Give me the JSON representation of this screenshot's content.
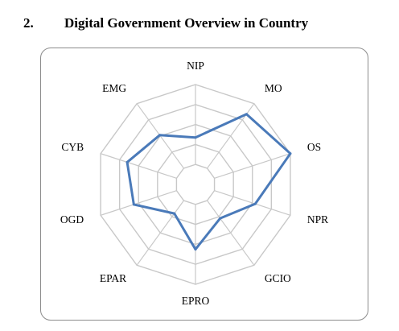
{
  "heading": {
    "number": "2.",
    "title": "Digital Government Overview in Country"
  },
  "chart_data": {
    "type": "radar",
    "title": "",
    "categories": [
      "NIP",
      "MO",
      "OS",
      "NPR",
      "GCIO",
      "EPRO",
      "EPAR",
      "OGD",
      "CYB",
      "EMG"
    ],
    "series": [
      {
        "values": [
          0.47,
          0.87,
          1.0,
          0.63,
          0.42,
          0.65,
          0.36,
          0.65,
          0.72,
          0.61
        ],
        "color": "#4a7ab9"
      }
    ],
    "rlim": [
      0,
      5
    ],
    "gridlines": true,
    "grid_rings": 5,
    "legend": "none",
    "colors": {
      "grid": "#c8c8c8",
      "line": "#4a7ab9",
      "frame": "#8c8c8c"
    }
  }
}
